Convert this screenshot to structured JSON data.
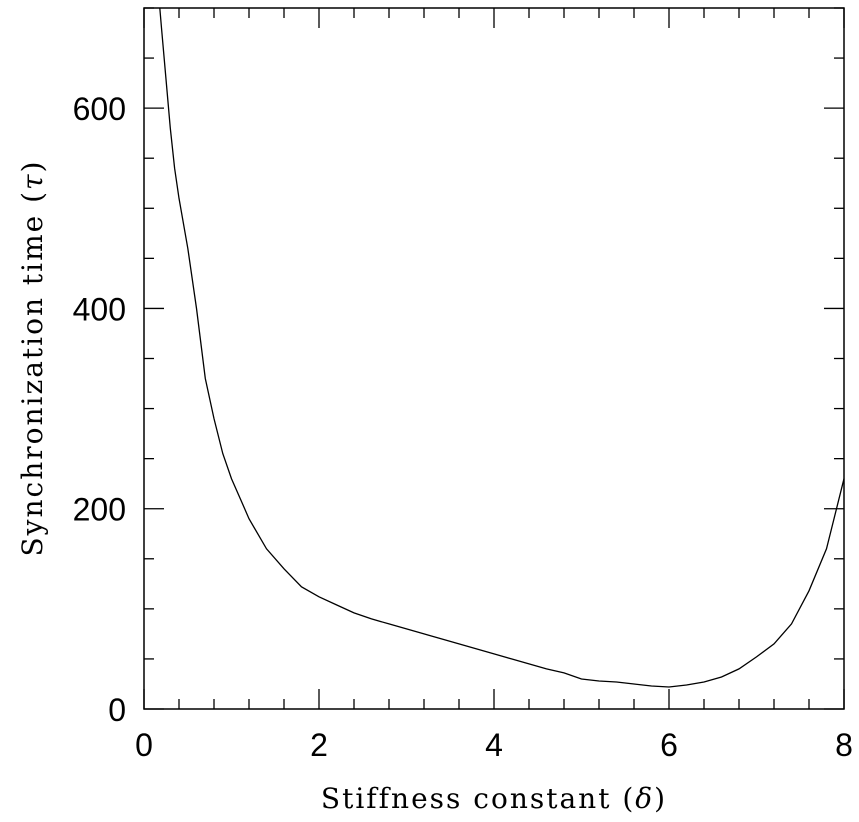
{
  "chart_data": {
    "type": "line",
    "title": "",
    "xlabel": "Stiffness constant (δ)",
    "xlabel_text": "Stiffness constant (",
    "xlabel_symbol": "δ",
    "xlabel_close": ")",
    "ylabel": "Synchronization time (τ)",
    "ylabel_text": "Synchronization time (",
    "ylabel_symbol": "τ",
    "ylabel_close": ")",
    "xlim": [
      0,
      8
    ],
    "ylim": [
      0,
      700
    ],
    "xticks": [
      0,
      2,
      4,
      6,
      8
    ],
    "yticks": [
      0,
      200,
      400,
      600
    ],
    "x_minor_step": 0.4,
    "y_minor_step": 50,
    "grid": false,
    "legend": "none",
    "line_color": "#000000",
    "series": [
      {
        "x": [
          0.18,
          0.2,
          0.25,
          0.3,
          0.35,
          0.4,
          0.5,
          0.6,
          0.7,
          0.8,
          0.9,
          1.0,
          1.1,
          1.2,
          1.4,
          1.6,
          1.8,
          2.0,
          2.2,
          2.4,
          2.6,
          2.8,
          3.0,
          3.2,
          3.4,
          3.6,
          3.8,
          4.0,
          4.2,
          4.4,
          4.6,
          4.8,
          5.0,
          5.2,
          5.4,
          5.6,
          5.8,
          6.0,
          6.2,
          6.4,
          6.6,
          6.8,
          7.0,
          7.2,
          7.4,
          7.6,
          7.8,
          8.0
        ],
        "y": [
          700,
          680,
          630,
          580,
          540,
          510,
          460,
          400,
          330,
          290,
          255,
          230,
          210,
          190,
          160,
          140,
          122,
          112,
          104,
          96,
          90,
          85,
          80,
          75,
          70,
          65,
          60,
          55,
          50,
          45,
          40,
          36,
          30,
          28,
          27,
          25,
          23,
          22,
          24,
          27,
          32,
          40,
          52,
          65,
          85,
          118,
          160,
          230
        ]
      }
    ]
  }
}
